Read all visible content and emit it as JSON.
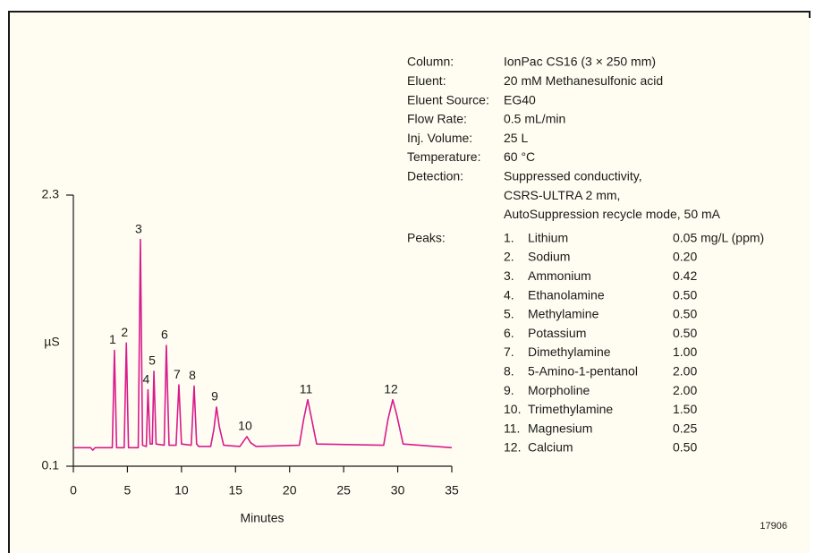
{
  "chart_data": {
    "type": "line",
    "xlabel": "Minutes",
    "ylabel": "µS",
    "color": "#d81b8c",
    "xlim": [
      0,
      35
    ],
    "ylim": [
      0.1,
      2.3
    ],
    "xticks": [
      0,
      5,
      10,
      15,
      20,
      25,
      30,
      35
    ],
    "yticks": [
      0.1,
      2.3
    ],
    "x": [
      0,
      1.6,
      1.8,
      2.0,
      3.6,
      3.8,
      4.0,
      4.7,
      4.9,
      5.1,
      6.0,
      6.2,
      6.4,
      6.75,
      6.9,
      7.1,
      7.3,
      7.45,
      7.65,
      8.4,
      8.6,
      8.85,
      9.5,
      9.76,
      10.0,
      10.9,
      11.17,
      11.4,
      11.6,
      12.7,
      13.0,
      13.24,
      13.5,
      13.9,
      15.4,
      15.8,
      16.05,
      16.4,
      16.9,
      20.9,
      21.3,
      21.68,
      22.0,
      22.5,
      28.7,
      29.1,
      29.54,
      29.9,
      30.5,
      35
    ],
    "values": [
      0.25,
      0.25,
      0.23,
      0.25,
      0.25,
      1.04,
      0.25,
      0.25,
      1.1,
      0.25,
      0.25,
      1.94,
      0.27,
      0.26,
      0.72,
      0.28,
      0.28,
      0.87,
      0.28,
      0.27,
      1.08,
      0.27,
      0.27,
      0.76,
      0.28,
      0.27,
      0.75,
      0.28,
      0.26,
      0.26,
      0.4,
      0.58,
      0.42,
      0.27,
      0.26,
      0.31,
      0.34,
      0.29,
      0.26,
      0.27,
      0.48,
      0.64,
      0.5,
      0.28,
      0.27,
      0.48,
      0.64,
      0.52,
      0.28,
      0.25
    ],
    "peak_labels": [
      "1",
      "2",
      "3",
      "4",
      "5",
      "6",
      "7",
      "8",
      "9",
      "10",
      "11",
      "12"
    ],
    "conditions": [
      {
        "label": "Column:",
        "value": [
          "IonPac CS16 (3 × 250 mm)"
        ]
      },
      {
        "label": "Eluent:",
        "value": [
          "20 mM Methanesulfonic acid"
        ]
      },
      {
        "label": "Eluent Source:",
        "value": [
          "EG40"
        ]
      },
      {
        "label": "Flow Rate:",
        "value": [
          "0.5 mL/min"
        ]
      },
      {
        "label": "Inj. Volume:",
        "value": [
          "25 L"
        ]
      },
      {
        "label": "Temperature:",
        "value": [
          "60 °C"
        ]
      },
      {
        "label": "Detection:",
        "value": [
          "Suppressed conductivity,",
          "CSRS-ULTRA  2 mm,",
          "AutoSuppression recycle mode, 50 mA"
        ]
      }
    ],
    "peaks_label": "Peaks:",
    "peaks": [
      {
        "number": "1.",
        "name": "Lithium",
        "amount": "0.05 mg/L (ppm)"
      },
      {
        "number": "2.",
        "name": "Sodium",
        "amount": "0.20"
      },
      {
        "number": "3.",
        "name": "Ammonium",
        "amount": "0.42"
      },
      {
        "number": "4.",
        "name": "Ethanolamine",
        "amount": "0.50"
      },
      {
        "number": "5.",
        "name": "Methylamine",
        "amount": "0.50"
      },
      {
        "number": "6.",
        "name": "Potassium",
        "amount": "0.50"
      },
      {
        "number": "7.",
        "name": "Dimethylamine",
        "amount": "1.00"
      },
      {
        "number": "8.",
        "name": "5-Amino-1-pentanol",
        "amount": "2.00"
      },
      {
        "number": "9.",
        "name": "Morpholine",
        "amount": "2.00"
      },
      {
        "number": "10.",
        "name": "Trimethylamine",
        "amount": "1.50"
      },
      {
        "number": "11.",
        "name": "Magnesium",
        "amount": "0.25"
      },
      {
        "number": "12.",
        "name": "Calcium",
        "amount": "0.50"
      }
    ],
    "figure_number": "17906"
  }
}
